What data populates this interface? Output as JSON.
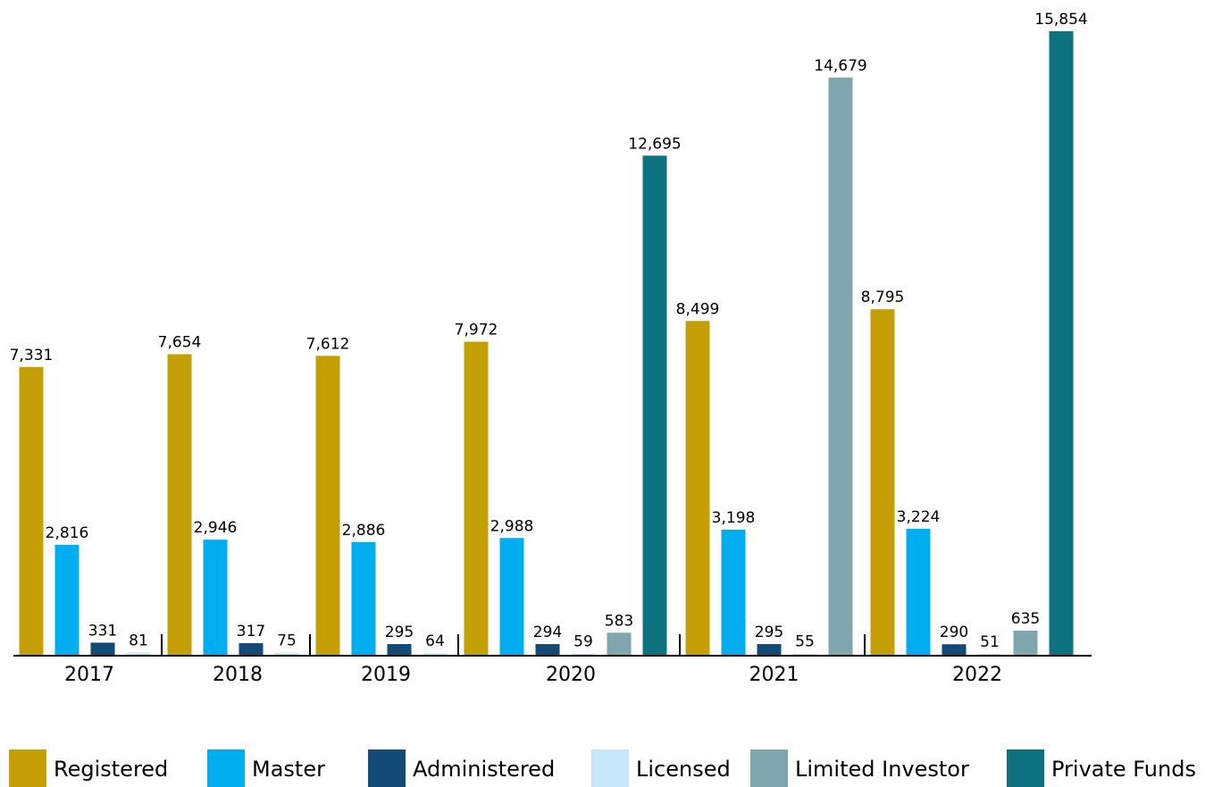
{
  "chart_data": {
    "type": "bar",
    "categories": [
      "2017",
      "2018",
      "2019",
      "2020",
      "2021",
      "2022"
    ],
    "series": [
      {
        "name": "Registered",
        "color": "#c49f05",
        "values": [
          7331,
          7654,
          7612,
          7972,
          8499,
          8795
        ],
        "value_labels": [
          "7,331",
          "7,654",
          "7,612",
          "7,972",
          "8,499",
          "8,795"
        ]
      },
      {
        "name": "Master",
        "color": "#00adee",
        "values": [
          2816,
          2946,
          2886,
          2988,
          3198,
          3224
        ],
        "value_labels": [
          "2,816",
          "2,946",
          "2,886",
          "2,988",
          "3,198",
          "3,224"
        ]
      },
      {
        "name": "Administered",
        "color": "#124a78",
        "values": [
          331,
          317,
          295,
          294,
          295,
          290
        ]
      },
      {
        "name": "Licensed",
        "color": "#c5e7f9",
        "values": [
          81,
          75,
          64,
          59,
          55,
          51
        ]
      },
      {
        "name": "Limited Investor",
        "color": "#7fa6ad",
        "values": [
          null,
          null,
          null,
          583,
          14679,
          635
        ],
        "value_labels": [
          null,
          null,
          null,
          "583",
          "14,679",
          "635"
        ]
      },
      {
        "name": "Private Funds",
        "color": "#0e717f",
        "values": [
          null,
          null,
          null,
          12695,
          null,
          15854
        ],
        "value_labels": [
          null,
          null,
          null,
          "12,695",
          null,
          "15,854"
        ]
      }
    ]
  }
}
